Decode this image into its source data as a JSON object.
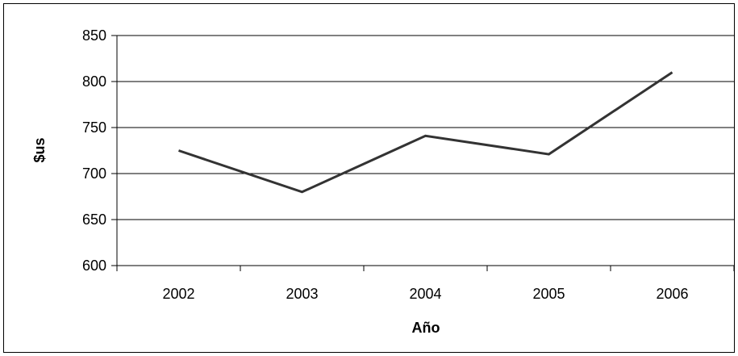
{
  "chart_data": {
    "type": "line",
    "title": "",
    "xlabel": "Año",
    "ylabel": "$us",
    "categories": [
      "2002",
      "2003",
      "2004",
      "2005",
      "2006"
    ],
    "series": [
      {
        "values": [
          725,
          680,
          741,
          721,
          810
        ]
      }
    ],
    "ylim": [
      600,
      850
    ],
    "yticks": [
      "600",
      "650",
      "700",
      "750",
      "800",
      "850"
    ],
    "grid": "horizontal",
    "legend": "none",
    "line_color": "#333333",
    "grid_color": "#000000"
  }
}
